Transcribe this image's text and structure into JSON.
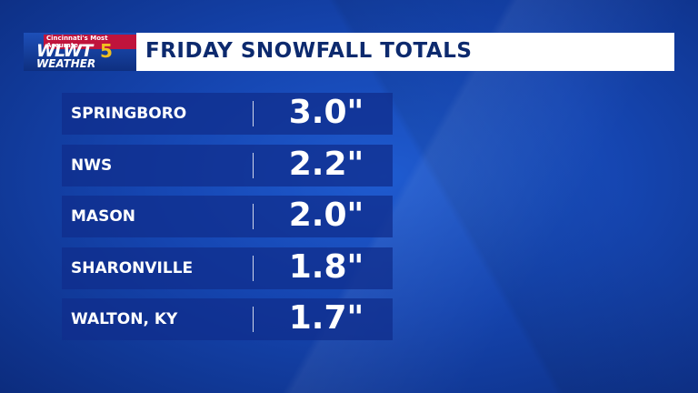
{
  "header": {
    "logo": {
      "tagline": "Cincinnati's Most Accurate",
      "call_sign": "WLWT",
      "channel": "5",
      "brand": "WEATHER"
    },
    "title": "FRIDAY SNOWFALL TOTALS"
  },
  "table": {
    "rows": [
      [
        "SPRINGBORO",
        "3.0\""
      ],
      [
        "NWS",
        "2.2\""
      ],
      [
        "MASON",
        "2.0\""
      ],
      [
        "SHARONVILLE",
        "1.8\""
      ],
      [
        "WALTON, KY",
        "1.7\""
      ]
    ]
  }
}
